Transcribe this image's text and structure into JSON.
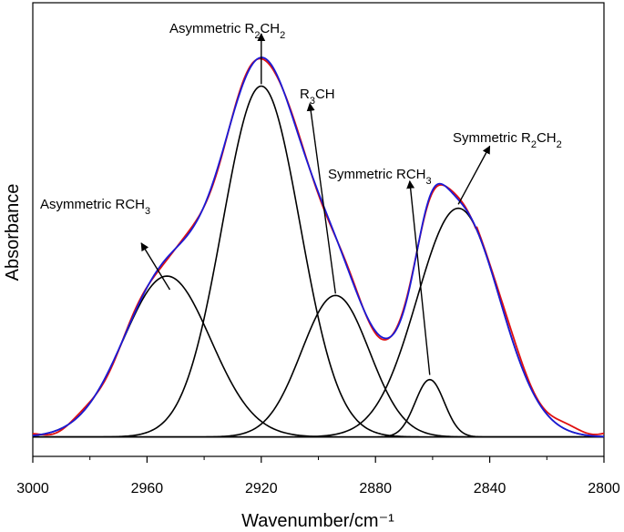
{
  "chart_data": {
    "type": "line",
    "title": "",
    "xlabel": "Wavenumber/cm⁻¹",
    "ylabel": "Absorbance",
    "xlim": [
      3000,
      2800
    ],
    "x_reversed": true,
    "ylim": [
      -0.05,
      1.12
    ],
    "y_ticks_shown": false,
    "x_ticks": [
      "3000",
      "2960",
      "2920",
      "2880",
      "2840",
      "2800"
    ],
    "x_tick_values": [
      3000,
      2960,
      2920,
      2880,
      2840,
      2800
    ],
    "grid": false,
    "legend": "none",
    "peaks": [
      {
        "name": "Asymmetric RCH3",
        "center": 2953,
        "height": 0.415,
        "fwhm": 36
      },
      {
        "name": "Asymmetric R2CH2",
        "center": 2920,
        "height": 0.905,
        "fwhm": 32
      },
      {
        "name": "R3CH",
        "center": 2894,
        "height": 0.365,
        "fwhm": 28
      },
      {
        "name": "Symmetric RCH3",
        "center": 2861,
        "height": 0.148,
        "fwhm": 12
      },
      {
        "name": "Symmetric R2CH2",
        "center": 2851,
        "height": 0.59,
        "fwhm": 34
      }
    ],
    "series": [
      {
        "role": "measured",
        "color": "#e01010"
      },
      {
        "role": "fit",
        "color": "#1a1ad6"
      },
      {
        "role": "components",
        "color": "#000000"
      }
    ],
    "annotations": [
      {
        "text": "Asymmetric RCH",
        "sub": "3",
        "arrow_from": [
          2952,
          0.38
        ],
        "arrow_to": [
          2962,
          0.5
        ]
      },
      {
        "text": "Asymmetric R",
        "sub": "2",
        "text2": "CH",
        "sub2": "2",
        "arrow_from": [
          2920,
          0.91
        ],
        "arrow_to": [
          2920,
          1.04
        ]
      },
      {
        "text": "R",
        "sub": "3",
        "text2": "CH",
        "arrow_from": [
          2894,
          0.37
        ],
        "arrow_to": [
          2903,
          0.86
        ]
      },
      {
        "text": "Symmetric RCH",
        "sub": "3",
        "arrow_from": [
          2861,
          0.16
        ],
        "arrow_to": [
          2868,
          0.66
        ]
      },
      {
        "text": "Symmetric R",
        "sub": "2",
        "text2": "CH",
        "sub2": "2",
        "arrow_from": [
          2851,
          0.6
        ],
        "arrow_to": [
          2840,
          0.75
        ]
      }
    ]
  }
}
